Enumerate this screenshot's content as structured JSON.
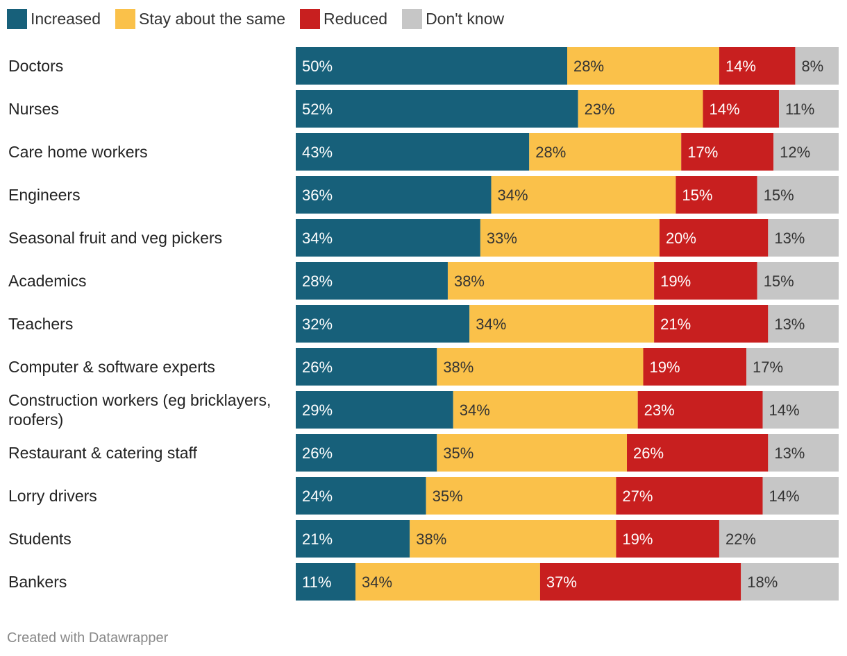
{
  "legend": {
    "items": [
      {
        "label": "Increased",
        "color": "#17607a"
      },
      {
        "label": "Stay about the same",
        "color": "#fac14a"
      },
      {
        "label": "Reduced",
        "color": "#c81f1f"
      },
      {
        "label": "Don't know",
        "color": "#c6c6c6"
      }
    ]
  },
  "chart_data": {
    "type": "bar",
    "orientation": "horizontal",
    "stacked": true,
    "unit": "%",
    "categories": [
      "Doctors",
      "Nurses",
      "Care home workers",
      "Engineers",
      "Seasonal fruit and veg pickers",
      "Academics",
      "Teachers",
      "Computer & software experts",
      "Construction workers (eg bricklayers, roofers)",
      "Restaurant & catering staff",
      "Lorry drivers",
      "Students",
      "Bankers"
    ],
    "series": [
      {
        "name": "Increased",
        "color": "#17607a",
        "label_color": "#ffffff",
        "values": [
          50,
          52,
          43,
          36,
          34,
          28,
          32,
          26,
          29,
          26,
          24,
          21,
          11
        ]
      },
      {
        "name": "Stay about the same",
        "color": "#fac14a",
        "label_color": "#333333",
        "values": [
          28,
          23,
          28,
          34,
          33,
          38,
          34,
          38,
          34,
          35,
          35,
          38,
          34
        ]
      },
      {
        "name": "Reduced",
        "color": "#c81f1f",
        "label_color": "#ffffff",
        "values": [
          14,
          14,
          17,
          15,
          20,
          19,
          21,
          19,
          23,
          26,
          27,
          19,
          37
        ]
      },
      {
        "name": "Don't know",
        "color": "#c6c6c6",
        "label_color": "#333333",
        "values": [
          8,
          11,
          12,
          15,
          13,
          15,
          13,
          17,
          14,
          13,
          14,
          22,
          18
        ]
      }
    ],
    "legend_position": "top-left"
  },
  "footer": {
    "credit": "Created with Datawrapper"
  }
}
